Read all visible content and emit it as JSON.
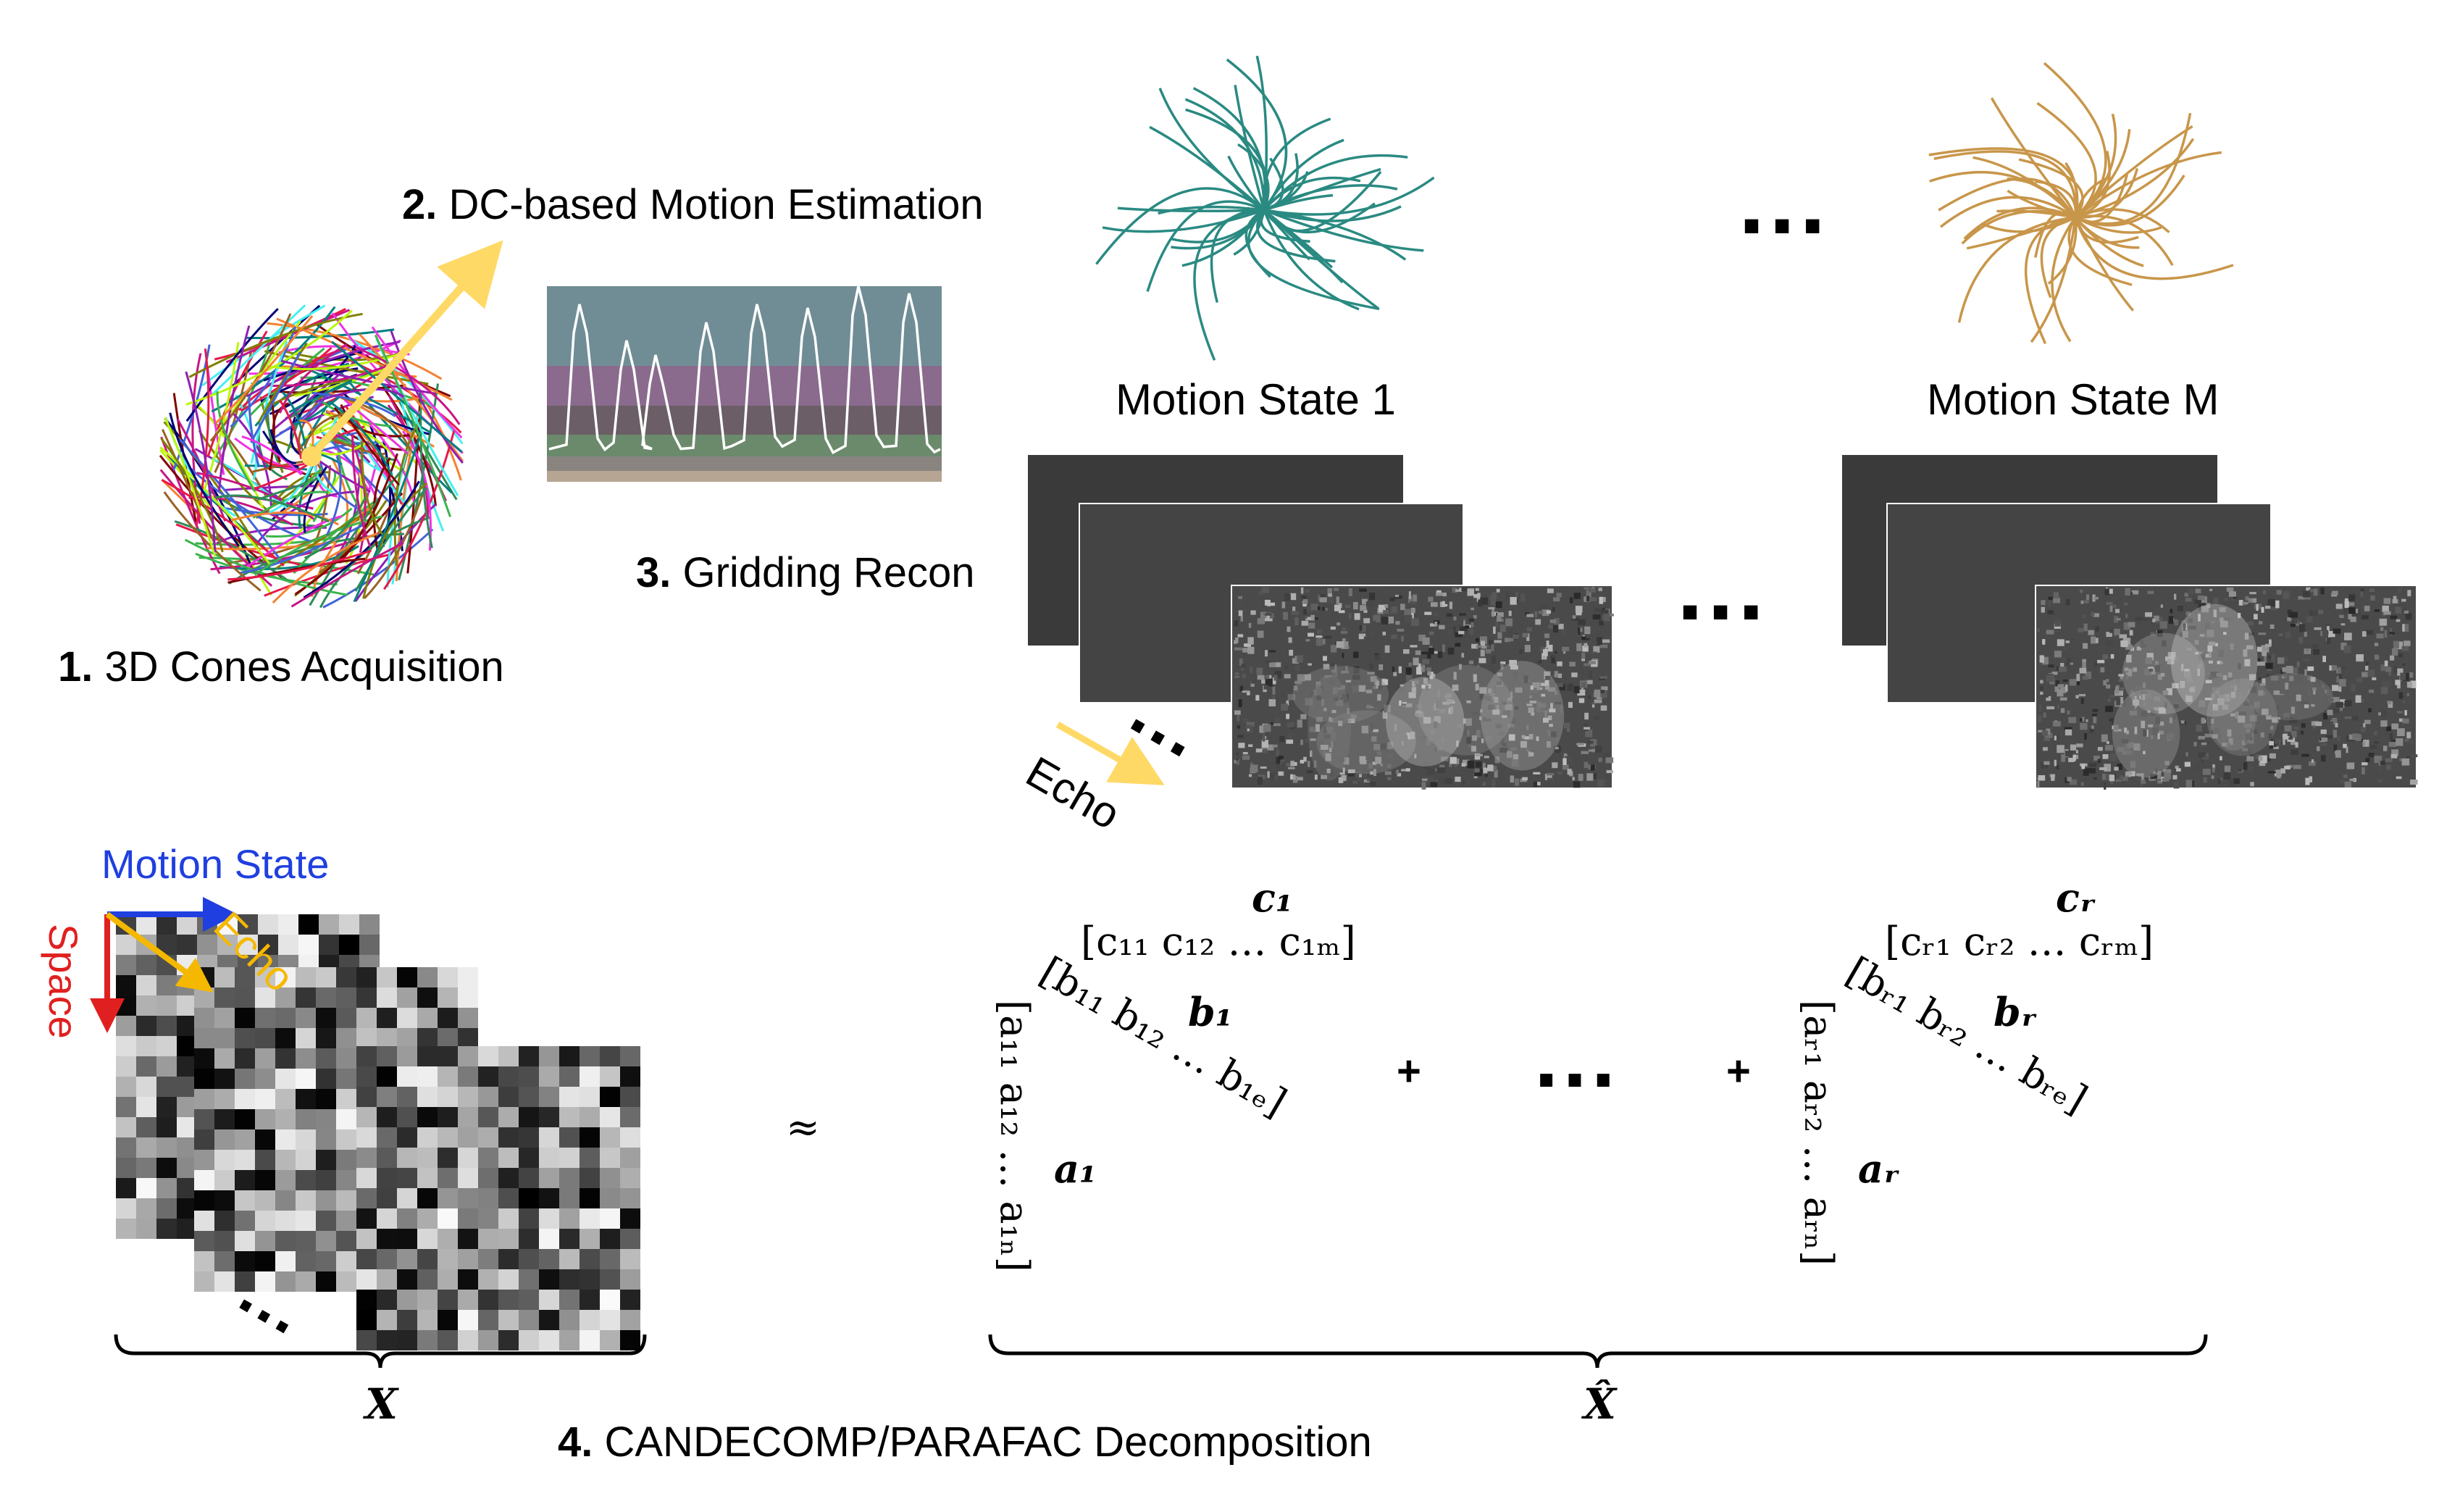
{
  "steps": {
    "s1": {
      "num": "1.",
      "text": " 3D Cones Acquisition"
    },
    "s2": {
      "num": "2.",
      "text": " DC-based Motion Estimation"
    },
    "s3": {
      "num": "3.",
      "text": " Gridding Recon"
    },
    "s4": {
      "num": "4.",
      "text": " CANDECOMP/PARAFAC Decomposition"
    }
  },
  "motion_states": {
    "first": "Motion State 1",
    "last": "Motion State M"
  },
  "echo_label": "Echo",
  "tensor_axes": {
    "motion": "Motion State",
    "space": "Space",
    "echo": "Echo"
  },
  "ellipsis": "...",
  "symbols": {
    "approx": "≈",
    "plus": "+",
    "X": "X",
    "X_hat": "X̂"
  },
  "factors": {
    "c1_label": "c₁",
    "c1_vec": "[c₁₁ c₁₂ … c₁ₘ]",
    "b1_label": "b₁",
    "b1_vec": "[b₁₁ b₁₂ … b₁ₑ]",
    "a1_label": "a₁",
    "a1_vec": "[a₁₁ a₁₂ … a₁ₙ]",
    "cR_label": "cᵣ",
    "cR_vec": "[cᵣ₁ cᵣ₂ … cᵣₘ]",
    "bR_label": "bᵣ",
    "bR_vec": "[bᵣ₁ bᵣ₂ … bᵣₑ]",
    "aR_label": "aᵣ",
    "aR_vec": "[aᵣ₁ aᵣ₂ … aᵣₙ]"
  },
  "colors": {
    "motion_state_1": "#2a8a82",
    "motion_state_m": "#c8964a",
    "echo_arrow": "#ffd966",
    "tensor_echo": "#f5b800",
    "motion_axis": "#1f3fe0",
    "space_axis": "#e02020",
    "motion_axis_text": "#1f3fe0",
    "space_axis_text": "#e02020",
    "echo_axis_text": "#f5b800"
  }
}
